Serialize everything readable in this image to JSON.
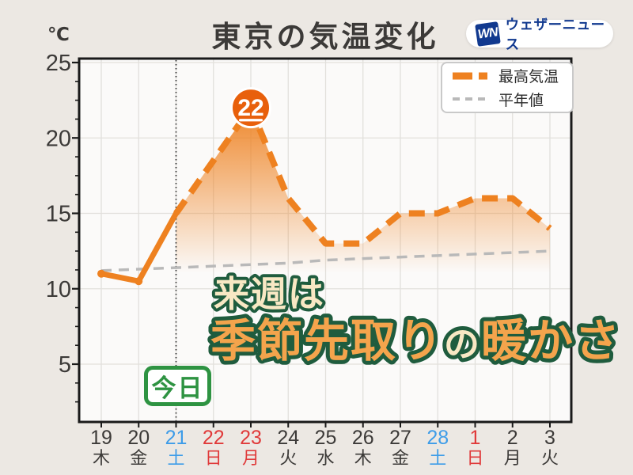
{
  "title": "東京の気温変化",
  "unit_label": "℃",
  "logo": {
    "mark": "WN",
    "name": "ウェザーニュース"
  },
  "legend": {
    "max_temp_label": "最高気温",
    "normal_label": "平年値"
  },
  "today_label": "今日",
  "caption": {
    "line1": "来週は",
    "line2_part1": "季節先取り",
    "line2_part2": "の",
    "line2_part3": "暖かさ"
  },
  "colors": {
    "line_orange": "#EE8120",
    "annotation_orange": "#E8600C",
    "normal_gray": "#B9B9B9",
    "label_dark": "#3C3A38",
    "saturday_blue": "#3D9CE8",
    "sunday_red": "#E03A3A",
    "today_green": "#2E9342",
    "caption_orange": "#F4A44C",
    "caption_cream": "#F8E8C4",
    "caption_outline": "#1F5C3E",
    "logo_blue": "#11398F",
    "background": "#ECE8E3",
    "plot_background": "#FBFAF9"
  },
  "chart_data": {
    "type": "line",
    "title": "東京の気温変化",
    "ylabel": "℃",
    "categories": [
      "19",
      "20",
      "21",
      "22",
      "23",
      "24",
      "25",
      "26",
      "27",
      "28",
      "1",
      "2",
      "3"
    ],
    "weekdays": [
      "木",
      "金",
      "土",
      "日",
      "月",
      "火",
      "水",
      "木",
      "金",
      "土",
      "日",
      "月",
      "火"
    ],
    "tick_colors": [
      "dark",
      "dark",
      "blue",
      "red",
      "red",
      "dark",
      "dark",
      "dark",
      "dark",
      "blue",
      "red",
      "dark",
      "dark"
    ],
    "series": [
      {
        "name": "最高気温",
        "values": [
          11,
          10.5,
          15,
          18.5,
          22,
          16,
          13,
          13,
          15,
          15,
          16,
          16,
          14
        ],
        "style": "solid-observed-then-dashed-forecast",
        "area_fill": "orange-gradient"
      },
      {
        "name": "平年値",
        "values": [
          11.2,
          11.3,
          11.4,
          11.5,
          11.6,
          11.7,
          11.9,
          12.0,
          12.1,
          12.2,
          12.3,
          12.4,
          12.5
        ],
        "style": "dashed"
      }
    ],
    "yticks": [
      5,
      10,
      15,
      20,
      25
    ],
    "ylim": [
      1,
      25.3
    ],
    "grid": true,
    "today_index": 2,
    "solid_until_index": 2,
    "peak_annotation": {
      "index": 4,
      "label": "22"
    },
    "legend_position": "top-right"
  }
}
